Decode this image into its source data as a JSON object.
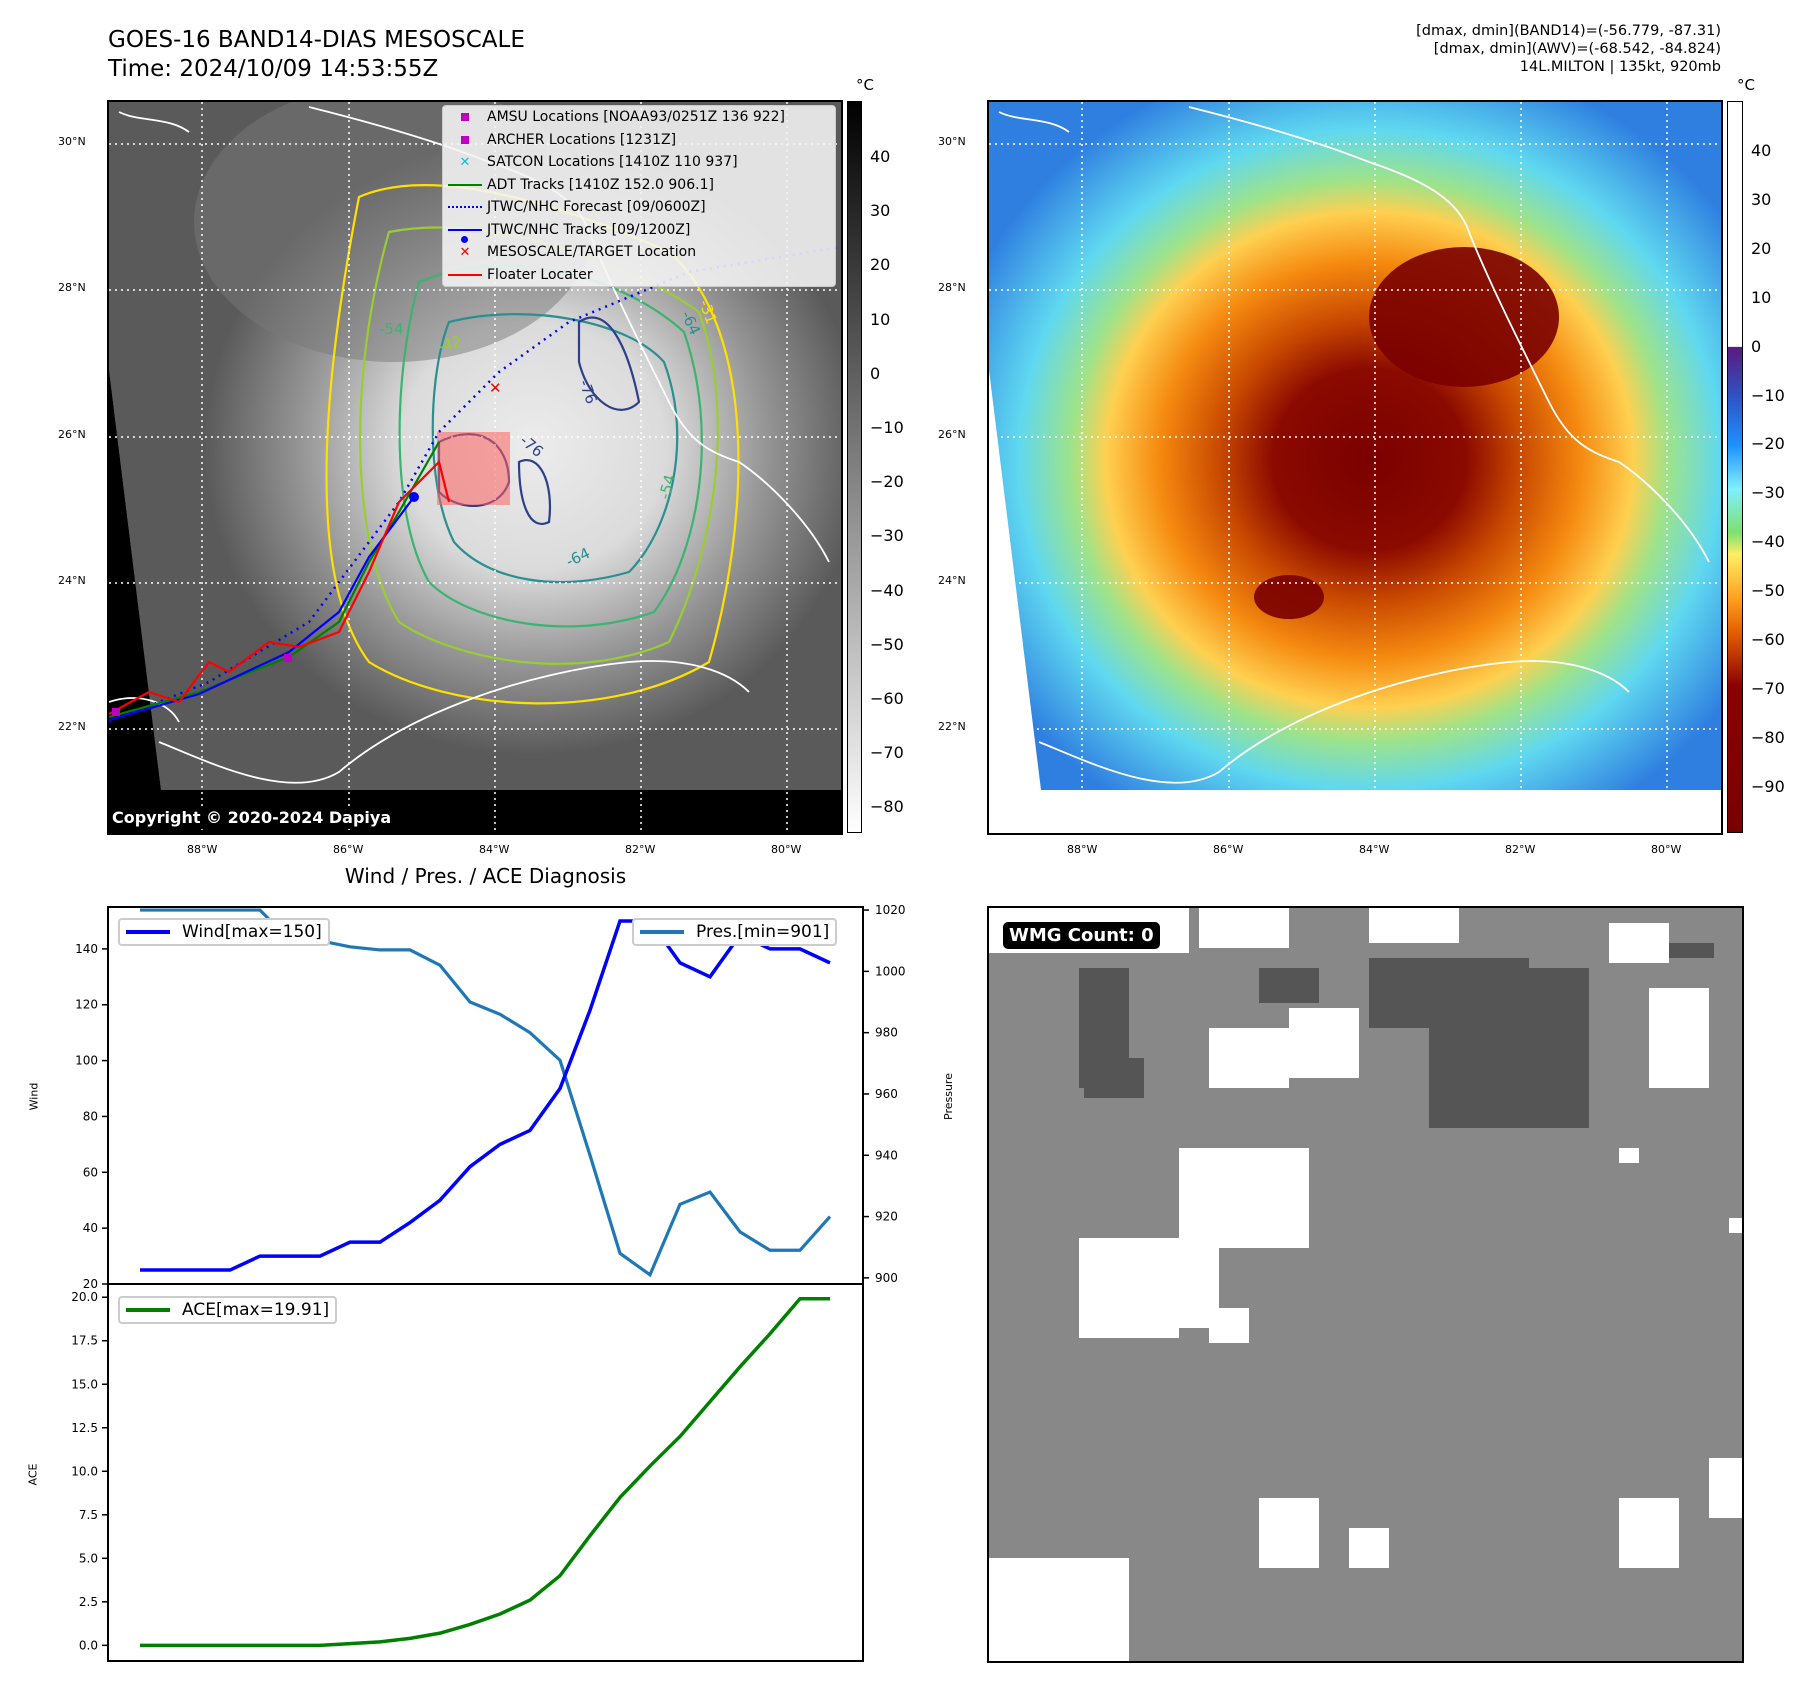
{
  "header": {
    "title_line1": "GOES-16 BAND14-DIAS MESOSCALE",
    "title_line2": "Time: 2024/10/09 14:53:55Z",
    "info_line1": "[dmax, dmin](BAND14)=(-56.779, -87.31)",
    "info_line2": "[dmax, dmin](AWV)=(-68.542, -84.824)",
    "info_line3": "14L.MILTON | 135kt, 920mb"
  },
  "map_axes": {
    "lat_labels": [
      "30°N",
      "28°N",
      "26°N",
      "24°N",
      "22°N"
    ],
    "lon_labels": [
      "88°W",
      "86°W",
      "84°W",
      "82°W",
      "80°W"
    ]
  },
  "left_map": {
    "colorbar_unit": "°C",
    "colorbar_ticks": [
      "40",
      "30",
      "20",
      "10",
      "0",
      "−10",
      "−20",
      "−30",
      "−40",
      "−50",
      "−60",
      "−70",
      "−80"
    ],
    "contour_labels": [
      "-54",
      "-76",
      "-76",
      "-54",
      "-64",
      "-64",
      "-42",
      "-31"
    ],
    "copyright": "Copyright © 2020-2024 Dapiya",
    "legend": [
      {
        "label": "AMSU Locations [NOAA93/0251Z 136 922]",
        "symbol": "square",
        "color": "#c000c0"
      },
      {
        "label": "ARCHER Locations [1231Z]",
        "symbol": "square",
        "color": "#c000c0"
      },
      {
        "label": "SATCON Locations [1410Z 110 937]",
        "symbol": "x",
        "color": "#17becf"
      },
      {
        "label": "ADT Tracks [1410Z 152.0 906.1]",
        "symbol": "line",
        "color": "#008000"
      },
      {
        "label": "JTWC/NHC Forecast [09/0600Z]",
        "symbol": "dotted",
        "color": "#0000ff"
      },
      {
        "label": "JTWC/NHC Tracks [09/1200Z]",
        "symbol": "line-dot",
        "color": "#0000ff"
      },
      {
        "label": "MESOSCALE/TARGET Location",
        "symbol": "x",
        "color": "#ff0000"
      },
      {
        "label": "Floater Locater",
        "symbol": "line",
        "color": "#ff0000"
      }
    ]
  },
  "right_map": {
    "colorbar_unit": "°C",
    "colorbar_ticks": [
      "40",
      "30",
      "20",
      "10",
      "0",
      "−10",
      "−20",
      "−30",
      "−40",
      "−50",
      "−60",
      "−70",
      "−80",
      "−90"
    ]
  },
  "diagnosis": {
    "title": "Wind / Pres. / ACE Diagnosis"
  },
  "wmg": {
    "label": "WMG Count: 0"
  },
  "chart_data": [
    {
      "type": "line",
      "title": "Wind / Pres. / ACE Diagnosis",
      "x": [
        0,
        1,
        2,
        3,
        4,
        5,
        6,
        7,
        8,
        9,
        10,
        11,
        12,
        13,
        14,
        15,
        16,
        17,
        18,
        19,
        20,
        21,
        22,
        23
      ],
      "ylabel": "Wind",
      "ylim": [
        20,
        155
      ],
      "yticks": [
        "20",
        "40",
        "60",
        "80",
        "100",
        "120",
        "140"
      ],
      "series": [
        {
          "name": "Wind[max=150]",
          "color": "#0000ff",
          "axis": "left",
          "values": [
            25,
            25,
            25,
            25,
            30,
            30,
            30,
            35,
            35,
            42,
            50,
            62,
            70,
            75,
            90,
            118,
            150,
            150,
            135,
            130,
            145,
            140,
            140,
            135
          ]
        }
      ],
      "y2label": "Pressure",
      "y2lim": [
        898,
        1021
      ],
      "y2ticks": [
        "900",
        "920",
        "940",
        "960",
        "980",
        "1000",
        "1020"
      ],
      "series2": [
        {
          "name": "Pres.[min=901]",
          "color": "#1f77b4",
          "axis": "right",
          "values": [
            1020,
            1020,
            1020,
            1020,
            1020,
            1010,
            1010,
            1008,
            1007,
            1007,
            1002,
            990,
            986,
            980,
            971,
            940,
            908,
            901,
            924,
            928,
            915,
            909,
            909,
            920
          ]
        }
      ],
      "legend": [
        "top-left",
        "top-right"
      ]
    },
    {
      "type": "line",
      "ylabel": "ACE",
      "ylim": [
        -0.9,
        20.3
      ],
      "yticks": [
        "0.0",
        "2.5",
        "5.0",
        "7.5",
        "10.0",
        "12.5",
        "15.0",
        "17.5",
        "20.0"
      ],
      "x": [
        0,
        1,
        2,
        3,
        4,
        5,
        6,
        7,
        8,
        9,
        10,
        11,
        12,
        13,
        14,
        15,
        16,
        17,
        18,
        19,
        20,
        21,
        22,
        23
      ],
      "series": [
        {
          "name": "ACE[max=19.91]",
          "color": "#008000",
          "values": [
            0,
            0,
            0,
            0,
            0,
            0,
            0,
            0.1,
            0.2,
            0.4,
            0.7,
            1.2,
            1.8,
            2.6,
            4.0,
            6.3,
            8.5,
            10.3,
            12.0,
            14.0,
            16.0,
            17.9,
            19.91,
            19.91
          ]
        }
      ],
      "legend": "top-left"
    }
  ]
}
